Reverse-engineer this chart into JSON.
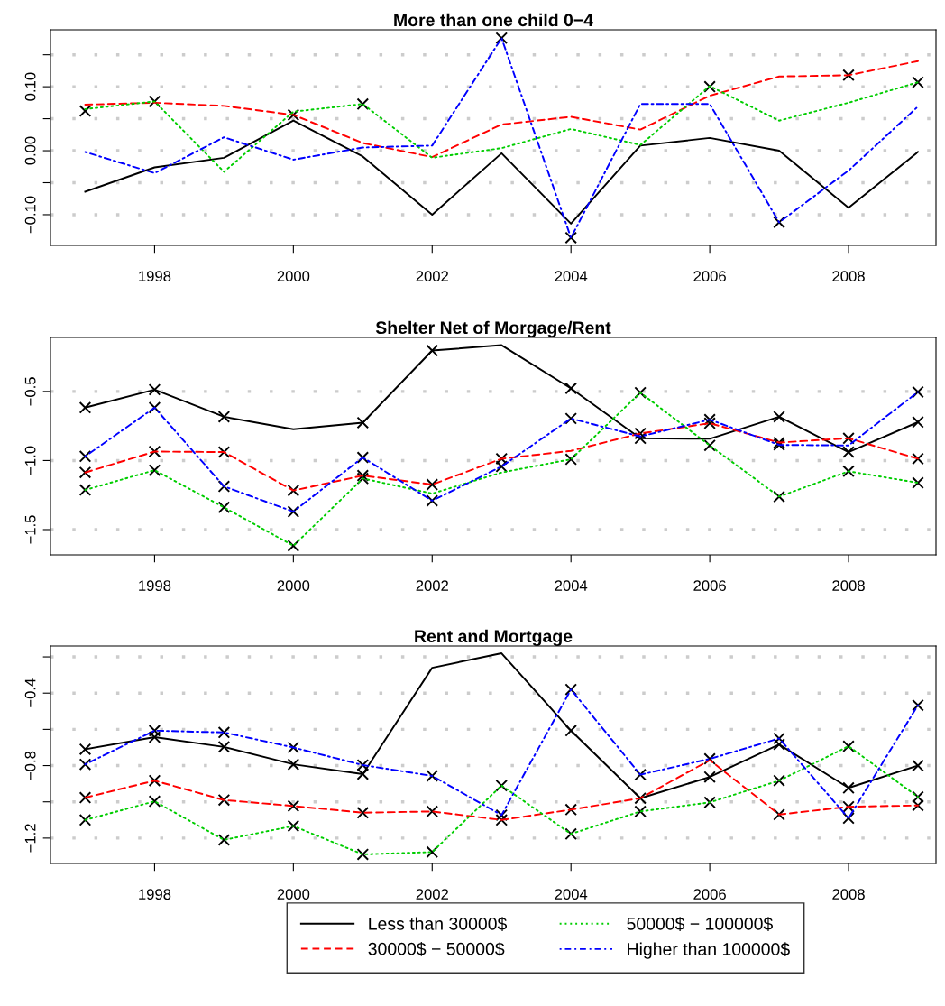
{
  "chart_data": [
    {
      "type": "line",
      "title": "More than one child 0−4",
      "x": [
        1997,
        1998,
        1999,
        2000,
        2001,
        2002,
        2003,
        2004,
        2005,
        2006,
        2007,
        2008,
        2009
      ],
      "xlim": [
        1996.5,
        2009.26
      ],
      "xticks": [
        1998,
        2000,
        2002,
        2004,
        2006,
        2008
      ],
      "ylim": [
        -0.148,
        0.189
      ],
      "yticks": [
        {
          "value": -0.1,
          "label": "−0.10"
        },
        {
          "value": -0.05,
          "label": null
        },
        {
          "value": 0,
          "label": "0.00"
        },
        {
          "value": 0.05,
          "label": null
        },
        {
          "value": 0.1,
          "label": "0.10"
        },
        {
          "value": 0.15,
          "label": null
        }
      ],
      "grid": "y",
      "legend": false,
      "series": [
        {
          "color": "#000000",
          "line_style": "solid",
          "values": [
            -0.064,
            -0.026,
            -0.011,
            0.047,
            -0.009,
            -0.1,
            -0.004,
            -0.114,
            0.008,
            0.02,
            0.0,
            -0.089,
            -0.002
          ]
        },
        {
          "color": "#ff0000",
          "line_style": "dashed",
          "values": [
            0.072,
            0.075,
            0.07,
            0.056,
            0.012,
            -0.01,
            0.041,
            0.053,
            0.033,
            0.086,
            0.116,
            0.118,
            0.14
          ]
        },
        {
          "color": "#00cd00",
          "line_style": "dotted",
          "values": [
            0.065,
            0.077,
            -0.033,
            0.061,
            0.073,
            -0.011,
            0.004,
            0.034,
            0.009,
            0.101,
            0.047,
            0.075,
            0.107
          ]
        },
        {
          "color": "#0000ff",
          "line_style": "dashdot",
          "values": [
            -0.002,
            -0.035,
            0.021,
            -0.014,
            0.005,
            0.008,
            0.176,
            -0.136,
            0.073,
            0.073,
            -0.112,
            -0.031,
            0.069
          ]
        },
        {
          "type": "scatter",
          "color": "#000000",
          "marker": "cross",
          "x": [
            1997,
            1998,
            2000,
            2001,
            2003,
            2004,
            2006,
            2007,
            2008,
            2009
          ],
          "values": [
            0.062,
            0.077,
            0.056,
            0.073,
            0.176,
            -0.136,
            0.1,
            -0.112,
            0.118,
            0.107
          ]
        }
      ]
    },
    {
      "type": "line",
      "title": "Shelter Net of Morgage/Rent",
      "x": [
        1997,
        1998,
        1999,
        2000,
        2001,
        2002,
        2003,
        2004,
        2005,
        2006,
        2007,
        2008,
        2009
      ],
      "xlim": [
        1996.5,
        2009.26
      ],
      "xticks": [
        1998,
        2000,
        2002,
        2004,
        2006,
        2008
      ],
      "ylim": [
        -1.683,
        -0.109
      ],
      "yticks": [
        {
          "value": -1.5,
          "label": "−1.5"
        },
        {
          "value": -1.0,
          "label": "−1.0"
        },
        {
          "value": -0.5,
          "label": "−0.5"
        }
      ],
      "grid": "y",
      "legend": false,
      "series": [
        {
          "color": "#000000",
          "line_style": "solid",
          "values": [
            -0.617,
            -0.487,
            -0.683,
            -0.774,
            -0.726,
            -0.204,
            -0.165,
            -0.478,
            -0.839,
            -0.843,
            -0.683,
            -0.939,
            -0.722
          ]
        },
        {
          "color": "#ff0000",
          "line_style": "dashed",
          "values": [
            -1.087,
            -0.935,
            -0.939,
            -1.217,
            -1.109,
            -1.174,
            -0.987,
            -0.93,
            -0.804,
            -0.73,
            -0.87,
            -0.839,
            -0.987
          ]
        },
        {
          "color": "#00cd00",
          "line_style": "dotted",
          "values": [
            -1.213,
            -1.07,
            -1.339,
            -1.617,
            -1.13,
            -1.239,
            -1.087,
            -0.991,
            -0.509,
            -0.891,
            -1.261,
            -1.078,
            -1.161
          ]
        },
        {
          "color": "#0000ff",
          "line_style": "dashdot",
          "values": [
            -0.97,
            -0.617,
            -1.187,
            -1.37,
            -0.978,
            -1.291,
            -1.043,
            -0.696,
            -0.826,
            -0.704,
            -0.887,
            -0.891,
            -0.504
          ]
        },
        {
          "type": "scatter",
          "color": "#000000",
          "marker": "cross",
          "x": [
            1997,
            1997,
            1997,
            1997,
            1998,
            1998,
            1998,
            1998,
            1999,
            1999,
            1999,
            1999,
            2000,
            2000,
            2000,
            2001,
            2001,
            2001,
            2001,
            2002,
            2002,
            2002,
            2003,
            2003,
            2004,
            2004,
            2004,
            2005,
            2005,
            2005,
            2006,
            2006,
            2006,
            2007,
            2007,
            2007,
            2007,
            2008,
            2008,
            2008,
            2009,
            2009,
            2009,
            2009
          ],
          "values": [
            -0.617,
            -0.97,
            -1.087,
            -1.213,
            -0.487,
            -0.617,
            -0.935,
            -1.07,
            -0.683,
            -0.939,
            -1.187,
            -1.339,
            -1.217,
            -1.37,
            -1.617,
            -0.726,
            -0.978,
            -1.109,
            -1.13,
            -0.204,
            -1.174,
            -1.291,
            -0.987,
            -1.043,
            -0.478,
            -0.696,
            -0.991,
            -0.509,
            -0.804,
            -0.839,
            -0.704,
            -0.73,
            -0.891,
            -0.683,
            -0.87,
            -0.887,
            -1.261,
            -0.839,
            -0.939,
            -1.078,
            -0.504,
            -0.722,
            -0.987,
            -1.161
          ]
        }
      ]
    },
    {
      "type": "line",
      "title": "Rent and Mortgage",
      "x": [
        1997,
        1998,
        1999,
        2000,
        2001,
        2002,
        2003,
        2004,
        2005,
        2006,
        2007,
        2008,
        2009
      ],
      "xlim": [
        1996.5,
        2009.26
      ],
      "xticks": [
        1998,
        2000,
        2002,
        2004,
        2006,
        2008
      ],
      "ylim": [
        -1.34,
        -0.14
      ],
      "yticks": [
        {
          "value": -1.2,
          "label": "−1.2"
        },
        {
          "value": -1.0,
          "label": null
        },
        {
          "value": -0.8,
          "label": "−0.8"
        },
        {
          "value": -0.6,
          "label": null
        },
        {
          "value": -0.4,
          "label": "−0.4"
        },
        {
          "value": -0.2,
          "label": null
        }
      ],
      "grid": "y",
      "legend": "bottom",
      "series": [
        {
          "name": "Less than 30000$",
          "color": "#000000",
          "line_style": "solid",
          "values": [
            -0.71,
            -0.643,
            -0.697,
            -0.793,
            -0.847,
            -0.26,
            -0.18,
            -0.607,
            -0.98,
            -0.863,
            -0.683,
            -0.923,
            -0.8
          ]
        },
        {
          "name": "30000$ − 50000$",
          "color": "#ff0000",
          "line_style": "dashed",
          "values": [
            -0.977,
            -0.883,
            -0.99,
            -1.023,
            -1.06,
            -1.053,
            -1.1,
            -1.043,
            -0.98,
            -0.77,
            -1.07,
            -1.027,
            -1.02
          ]
        },
        {
          "name": "50000$ − 100000$",
          "color": "#00cd00",
          "line_style": "dotted",
          "values": [
            -1.1,
            -0.997,
            -1.21,
            -1.133,
            -1.29,
            -1.277,
            -0.91,
            -1.177,
            -1.053,
            -1.003,
            -0.883,
            -0.693,
            -0.973
          ]
        },
        {
          "name": "Higher than 100000$",
          "color": "#0000ff",
          "line_style": "dashdot",
          "values": [
            -0.793,
            -0.607,
            -0.617,
            -0.7,
            -0.797,
            -0.857,
            -1.073,
            -0.38,
            -0.85,
            -0.763,
            -0.65,
            -1.09,
            -0.467
          ]
        },
        {
          "type": "scatter",
          "color": "#000000",
          "marker": "cross",
          "x": [
            1997,
            1997,
            1997,
            1997,
            1998,
            1998,
            1998,
            1998,
            1999,
            1999,
            1999,
            1999,
            2000,
            2000,
            2000,
            2000,
            2001,
            2001,
            2001,
            2001,
            2002,
            2002,
            2002,
            2003,
            2003,
            2003,
            2004,
            2004,
            2004,
            2004,
            2005,
            2005,
            2005,
            2006,
            2006,
            2006,
            2007,
            2007,
            2007,
            2007,
            2008,
            2008,
            2008,
            2008,
            2009,
            2009,
            2009,
            2009
          ],
          "values": [
            -0.71,
            -0.793,
            -0.977,
            -1.1,
            -0.607,
            -0.643,
            -0.883,
            -0.997,
            -0.617,
            -0.697,
            -0.99,
            -1.21,
            -0.7,
            -0.793,
            -1.023,
            -1.133,
            -0.797,
            -0.847,
            -1.06,
            -1.29,
            -0.857,
            -1.053,
            -1.277,
            -0.91,
            -1.073,
            -1.1,
            -0.38,
            -0.607,
            -1.043,
            -1.177,
            -0.85,
            -0.98,
            -1.053,
            -0.763,
            -0.863,
            -1.003,
            -0.65,
            -0.683,
            -0.883,
            -1.07,
            -0.693,
            -0.923,
            -1.027,
            -1.09,
            -0.467,
            -0.8,
            -0.973,
            -1.02
          ]
        }
      ]
    }
  ]
}
